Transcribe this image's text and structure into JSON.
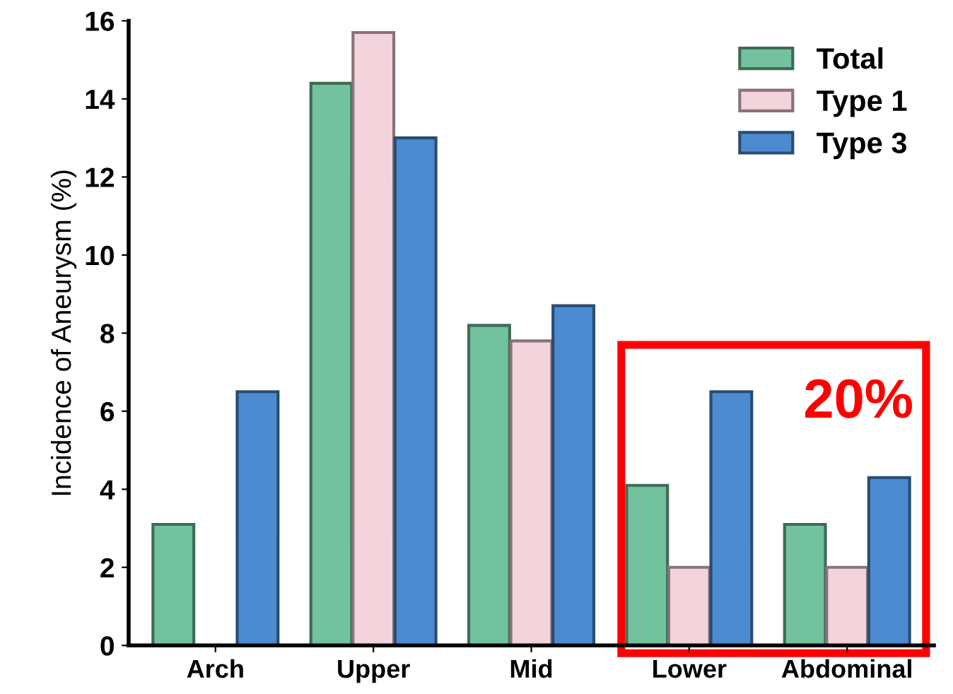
{
  "chart_data": {
    "type": "bar",
    "ylabel": "Incidence of Aneurysm (%)",
    "categories": [
      "Arch",
      "Upper",
      "Mid",
      "Lower",
      "Abdominal"
    ],
    "series": [
      {
        "name": "Total",
        "color": "#72c29f",
        "values": [
          3.1,
          14.4,
          8.2,
          4.1,
          3.1
        ]
      },
      {
        "name": "Type 1",
        "color": "#f3d3dc",
        "values": [
          null,
          15.7,
          7.8,
          2.0,
          2.0
        ]
      },
      {
        "name": "Type 3",
        "color": "#4d8bd0",
        "values": [
          6.5,
          13.0,
          8.7,
          6.5,
          4.3
        ]
      }
    ],
    "ylim": [
      0,
      16
    ],
    "yticks": [
      0,
      2,
      4,
      6,
      8,
      10,
      12,
      14,
      16
    ],
    "grid": false,
    "legend": "top right",
    "annotations": [
      "20%"
    ]
  }
}
